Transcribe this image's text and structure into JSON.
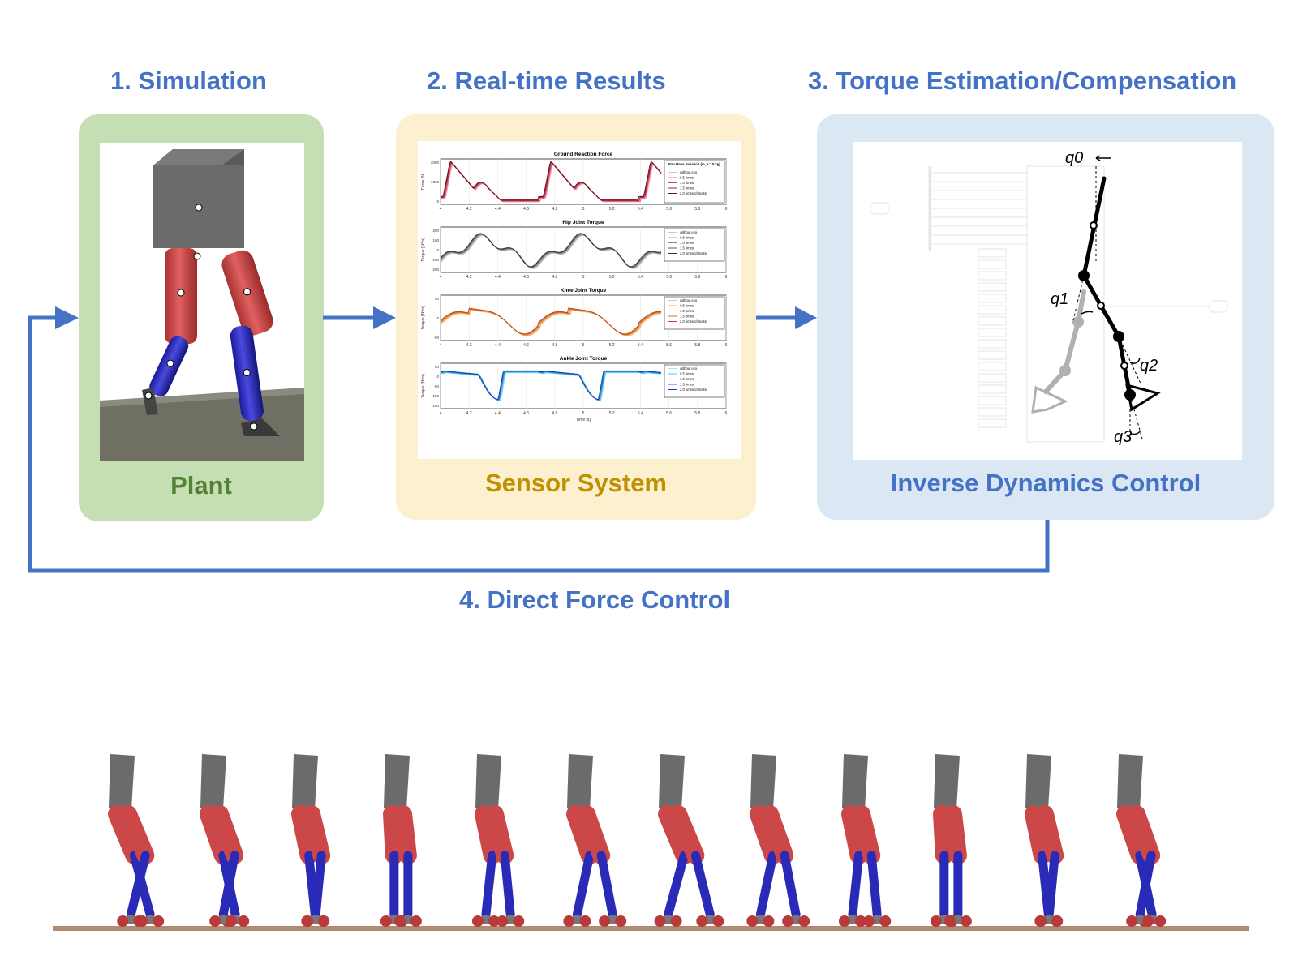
{
  "steps": {
    "s1": "1. Simulation",
    "s2": "2. Real-time Results",
    "s3": "3. Torque Estimation/Compensation",
    "s4": "4. Direct Force Control"
  },
  "panels": {
    "plant": "Plant",
    "sensor": "Sensor System",
    "inverse": "Inverse Dynamics Control"
  },
  "colors": {
    "accent": "#4472c4",
    "plant_bg": "#c5deb3",
    "plant_text": "#548235",
    "sensor_bg": "#fdf0cf",
    "sensor_text": "#bf9000",
    "inverse_bg": "#dce7f4",
    "inverse_text": "#4472c4"
  },
  "joint_labels": [
    "q0",
    "q1",
    "q2",
    "q3"
  ],
  "chart_data": [
    {
      "type": "line",
      "title": "Ground Reaction Force",
      "ylabel": "Force [N]",
      "yticks": [
        "2000",
        "1000",
        "0"
      ],
      "xticks": [
        "4",
        "4.2",
        "4.4",
        "4.6",
        "4.8",
        "5",
        "5.2",
        "5.4",
        "5.6",
        "5.8",
        "6"
      ],
      "legend_title": "Exo Mass Variation (m_e = 5 kg)",
      "legend": [
        "without exo",
        "0.5 times",
        "1.0 times",
        "1.5 times",
        "2.0 times of mass"
      ],
      "colors": [
        "#f2b8c0",
        "#e07a8c",
        "#c94060",
        "#a0203c",
        "#6e0e22"
      ]
    },
    {
      "type": "line",
      "title": "Hip Joint Torque",
      "ylabel": "Torque [N*m]",
      "yticks": [
        "200",
        "100",
        "0",
        "-100",
        "-200"
      ],
      "xticks": [
        "4",
        "4.2",
        "4.4",
        "4.6",
        "4.8",
        "5",
        "5.2",
        "5.4",
        "5.6",
        "5.8",
        "6"
      ],
      "legend": [
        "without exo",
        "0.5 times",
        "1.0 times",
        "1.5 times",
        "2.0 times of mass"
      ],
      "colors": [
        "#c8c8c8",
        "#a8a8a8",
        "#888888",
        "#606060",
        "#303030"
      ]
    },
    {
      "type": "line",
      "title": "Knee Joint Torque",
      "ylabel": "Torque [N*m]",
      "yticks": [
        "50",
        "0",
        "-50"
      ],
      "xticks": [
        "4",
        "4.2",
        "4.4",
        "4.6",
        "4.8",
        "5",
        "5.2",
        "5.4",
        "5.6",
        "5.8",
        "6"
      ],
      "legend": [
        "without exo",
        "0.5 times",
        "1.0 times",
        "1.5 times",
        "2.0 times of mass"
      ],
      "colors": [
        "#f5c98a",
        "#f0a860",
        "#e88a3c",
        "#d8682a",
        "#b84818"
      ]
    },
    {
      "type": "line",
      "title": "Ankle Joint Torque",
      "ylabel": "Torque [N*m]",
      "xlabel": "Time [s]",
      "yticks": [
        "50",
        "0",
        "-50",
        "-100",
        "-150"
      ],
      "xticks": [
        "4",
        "4.2",
        "4.4",
        "4.6",
        "4.8",
        "5",
        "5.2",
        "5.4",
        "5.6",
        "5.8",
        "6"
      ],
      "legend": [
        "without exo",
        "0.5 times",
        "1.0 times",
        "1.5 times",
        "2.0 times of mass"
      ],
      "colors": [
        "#9fe6f5",
        "#5cc8ef",
        "#2f9fe0",
        "#1f70d0",
        "#1040a8"
      ]
    }
  ]
}
